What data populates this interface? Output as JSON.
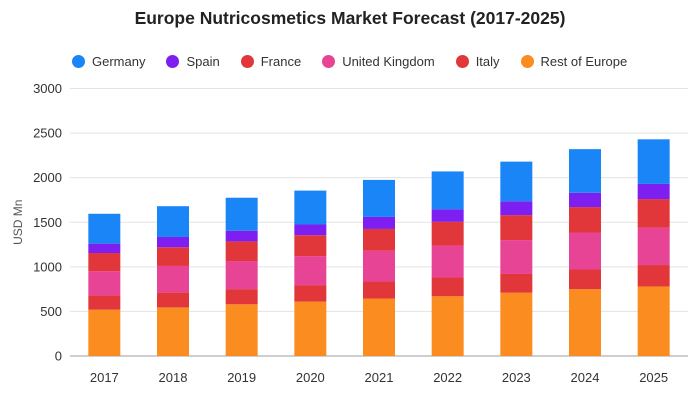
{
  "chart_data": {
    "type": "bar",
    "stacked": true,
    "title": "Europe Nutricosmetics Market Forecast (2017-2025)",
    "xlabel": "",
    "ylabel": "USD Mn",
    "ylim": [
      0,
      3000
    ],
    "yticks": [
      0,
      500,
      1000,
      1500,
      2000,
      2500,
      3000
    ],
    "grid": true,
    "legend_position": "top-left",
    "categories": [
      "2017",
      "2018",
      "2019",
      "2020",
      "2021",
      "2022",
      "2023",
      "2024",
      "2025"
    ],
    "series": [
      {
        "name": "Rest of Europe",
        "color": "#fb8c1f",
        "values": [
          520,
          545,
          580,
          610,
          645,
          670,
          710,
          750,
          780
        ]
      },
      {
        "name": "Italy",
        "color": "#e1373a",
        "values": [
          160,
          170,
          170,
          185,
          190,
          210,
          210,
          220,
          240
        ]
      },
      {
        "name": "United Kingdom",
        "color": "#e74496",
        "values": [
          270,
          295,
          315,
          325,
          345,
          360,
          380,
          415,
          420
        ]
      },
      {
        "name": "France",
        "color": "#e1373a",
        "values": [
          205,
          210,
          220,
          235,
          245,
          265,
          280,
          285,
          320
        ]
      },
      {
        "name": "Spain",
        "color": "#7c1ff0",
        "values": [
          105,
          115,
          120,
          120,
          135,
          140,
          155,
          160,
          170
        ]
      },
      {
        "name": "Germany",
        "color": "#1a85f6",
        "values": [
          335,
          345,
          370,
          380,
          415,
          425,
          445,
          490,
          500
        ]
      }
    ],
    "legend": [
      "Germany",
      "Spain",
      "France",
      "United Kingdom",
      "Italy",
      "Rest of Europe"
    ]
  }
}
